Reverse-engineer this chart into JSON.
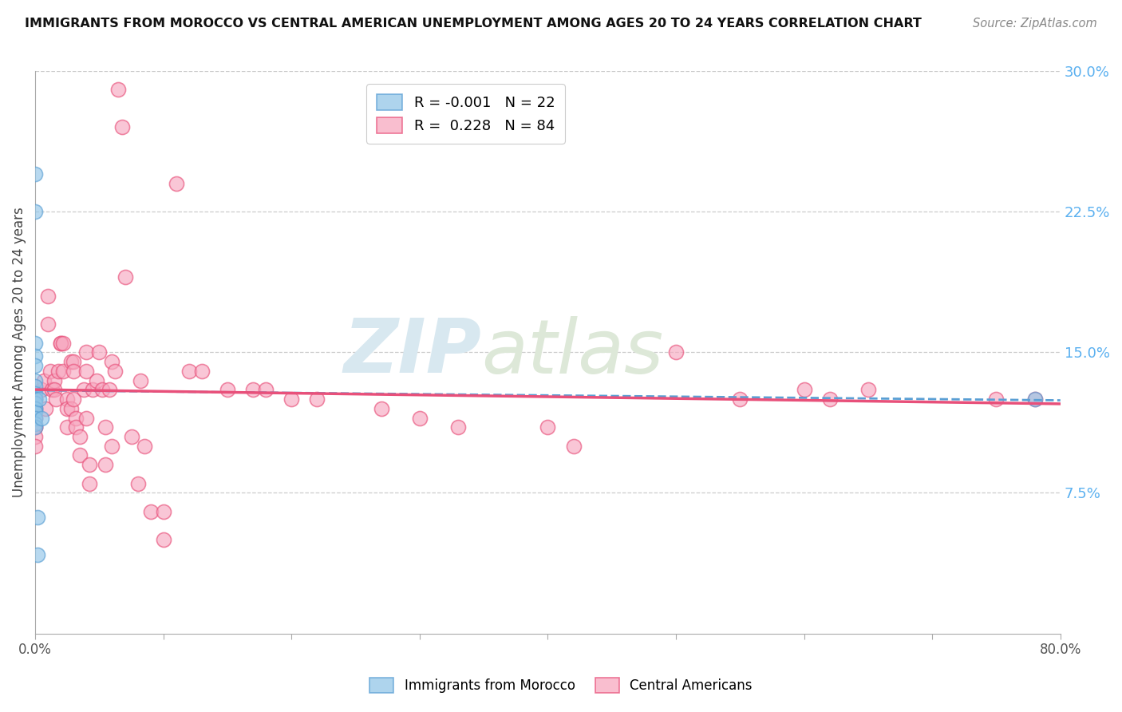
{
  "title": "IMMIGRANTS FROM MOROCCO VS CENTRAL AMERICAN UNEMPLOYMENT AMONG AGES 20 TO 24 YEARS CORRELATION CHART",
  "source": "Source: ZipAtlas.com",
  "ylabel": "Unemployment Among Ages 20 to 24 years",
  "xlim": [
    0.0,
    0.8
  ],
  "ylim": [
    0.0,
    0.3
  ],
  "x_ticks": [
    0.0,
    0.1,
    0.2,
    0.3,
    0.4,
    0.5,
    0.6,
    0.7,
    0.8
  ],
  "y_ticks_right": [
    0.075,
    0.15,
    0.225,
    0.3
  ],
  "y_tick_labels_right": [
    "7.5%",
    "15.0%",
    "22.5%",
    "30.0%"
  ],
  "color_morocco": "#93c6e8",
  "color_central": "#f7a8c0",
  "color_trend_morocco": "#5a9fd4",
  "color_trend_central": "#e8507a",
  "watermark_zip": "ZIP",
  "watermark_atlas": "atlas",
  "morocco_x": [
    0.0,
    0.0,
    0.0,
    0.0,
    0.0,
    0.0,
    0.0,
    0.0,
    0.0,
    0.0,
    0.0,
    0.0,
    0.0,
    0.0,
    0.0,
    0.0,
    0.0,
    0.002,
    0.002,
    0.003,
    0.005,
    0.78
  ],
  "morocco_y": [
    0.245,
    0.225,
    0.155,
    0.148,
    0.143,
    0.135,
    0.132,
    0.128,
    0.125,
    0.125,
    0.123,
    0.12,
    0.12,
    0.118,
    0.115,
    0.112,
    0.11,
    0.062,
    0.042,
    0.125,
    0.115,
    0.125
  ],
  "central_x": [
    0.0,
    0.0,
    0.0,
    0.0,
    0.0,
    0.0,
    0.0,
    0.005,
    0.007,
    0.008,
    0.01,
    0.01,
    0.012,
    0.013,
    0.015,
    0.015,
    0.016,
    0.018,
    0.02,
    0.02,
    0.022,
    0.022,
    0.025,
    0.025,
    0.025,
    0.028,
    0.028,
    0.03,
    0.03,
    0.03,
    0.032,
    0.032,
    0.035,
    0.035,
    0.038,
    0.04,
    0.04,
    0.04,
    0.042,
    0.042,
    0.045,
    0.048,
    0.05,
    0.052,
    0.055,
    0.055,
    0.058,
    0.06,
    0.06,
    0.062,
    0.065,
    0.068,
    0.07,
    0.075,
    0.08,
    0.082,
    0.085,
    0.09,
    0.1,
    0.1,
    0.11,
    0.12,
    0.13,
    0.15,
    0.17,
    0.18,
    0.2,
    0.22,
    0.27,
    0.3,
    0.33,
    0.4,
    0.42,
    0.5,
    0.55,
    0.6,
    0.62,
    0.65,
    0.75,
    0.78
  ],
  "central_y": [
    0.125,
    0.12,
    0.115,
    0.11,
    0.11,
    0.105,
    0.1,
    0.13,
    0.135,
    0.12,
    0.18,
    0.165,
    0.14,
    0.13,
    0.135,
    0.13,
    0.125,
    0.14,
    0.155,
    0.155,
    0.155,
    0.14,
    0.125,
    0.12,
    0.11,
    0.145,
    0.12,
    0.145,
    0.14,
    0.125,
    0.115,
    0.11,
    0.105,
    0.095,
    0.13,
    0.15,
    0.14,
    0.115,
    0.09,
    0.08,
    0.13,
    0.135,
    0.15,
    0.13,
    0.11,
    0.09,
    0.13,
    0.145,
    0.1,
    0.14,
    0.29,
    0.27,
    0.19,
    0.105,
    0.08,
    0.135,
    0.1,
    0.065,
    0.065,
    0.05,
    0.24,
    0.14,
    0.14,
    0.13,
    0.13,
    0.13,
    0.125,
    0.125,
    0.12,
    0.115,
    0.11,
    0.11,
    0.1,
    0.15,
    0.125,
    0.13,
    0.125,
    0.13,
    0.125,
    0.125
  ]
}
